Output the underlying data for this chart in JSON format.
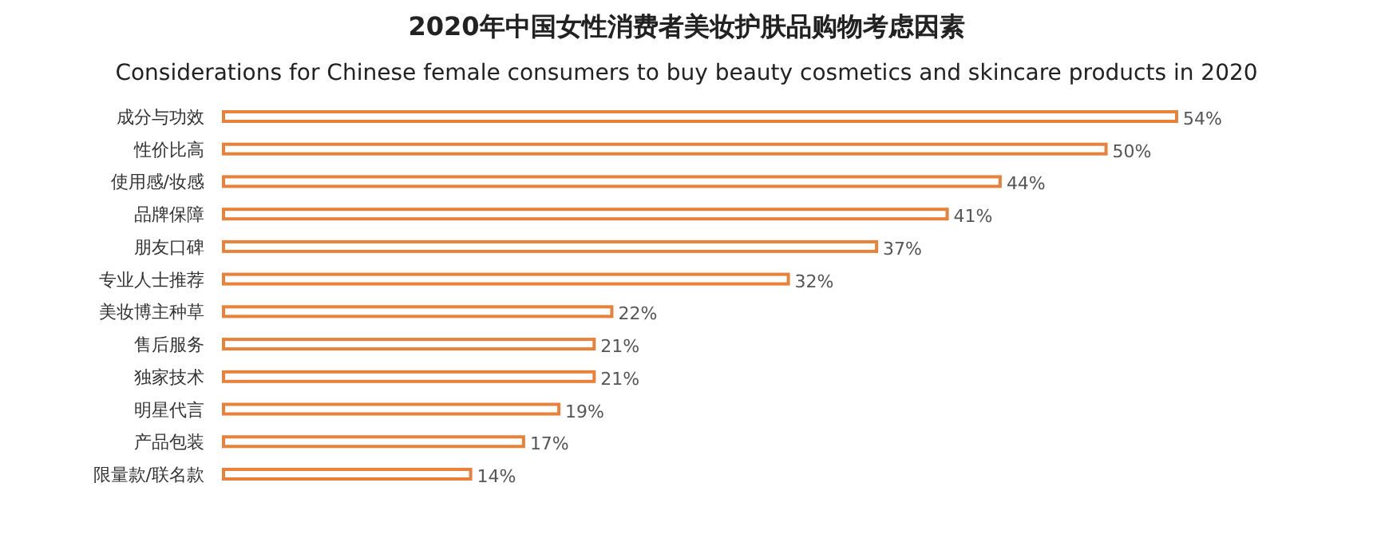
{
  "chart_data": {
    "type": "bar",
    "orientation": "horizontal",
    "title": "2020年中国女性消费者美妆护肤品购物考虑因素",
    "subtitle": "Considerations for Chinese female consumers to buy beauty cosmetics and skincare products in 2020",
    "categories": [
      "成分与功效",
      "性价比高",
      "使用感/妆感",
      "品牌保障",
      "朋友口碑",
      "专业人士推荐",
      "美妆博主种草",
      "售后服务",
      "独家技术",
      "明星代言",
      "产品包装",
      "限量款/联名款"
    ],
    "values": [
      54,
      50,
      44,
      41,
      37,
      32,
      22,
      21,
      21,
      19,
      17,
      14
    ],
    "value_labels": [
      "54%",
      "50%",
      "44%",
      "41%",
      "37%",
      "32%",
      "22%",
      "21%",
      "21%",
      "19%",
      "17%",
      "14%"
    ],
    "color": "#e8823a"
  }
}
